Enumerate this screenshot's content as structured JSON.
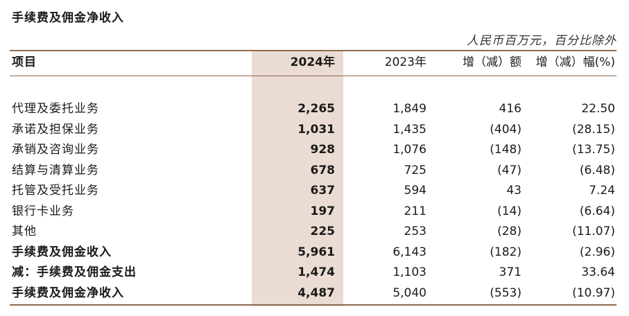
{
  "title": "手续费及佣金净收入",
  "unit_note": "人民币百万元，百分比除外",
  "headers": {
    "item": "项目",
    "y2024": "2024年",
    "y2023": "2023年",
    "change": "增（减）额",
    "change_pct": "增（减）幅(%)"
  },
  "rows": [
    {
      "label": "代理及委托业务",
      "y2024": "2,265",
      "y2023": "1,849",
      "change": "416",
      "change_pct": "22.50"
    },
    {
      "label": "承诺及担保业务",
      "y2024": "1,031",
      "y2023": "1,435",
      "change": "(404)",
      "change_pct": "(28.15)"
    },
    {
      "label": "承销及咨询业务",
      "y2024": "928",
      "y2023": "1,076",
      "change": "(148)",
      "change_pct": "(13.75)"
    },
    {
      "label": "结算与清算业务",
      "y2024": "678",
      "y2023": "725",
      "change": "(47)",
      "change_pct": "(6.48)"
    },
    {
      "label": "托管及受托业务",
      "y2024": "637",
      "y2023": "594",
      "change": "43",
      "change_pct": "7.24"
    },
    {
      "label": "银行卡业务",
      "y2024": "197",
      "y2023": "211",
      "change": "(14)",
      "change_pct": "(6.64)"
    },
    {
      "label": "其他",
      "y2024": "225",
      "y2023": "253",
      "change": "(28)",
      "change_pct": "(11.07)"
    },
    {
      "label": "手续费及佣金收入",
      "y2024": "5,961",
      "y2023": "6,143",
      "change": "(182)",
      "change_pct": "(2.96)"
    },
    {
      "label": "减：手续费及佣金支出",
      "y2024": "1,474",
      "y2023": "1,103",
      "change": "371",
      "change_pct": "33.64"
    },
    {
      "label": "手续费及佣金净收入",
      "y2024": "4,487",
      "y2023": "5,040",
      "change": "(553)",
      "change_pct": "(10.97)"
    }
  ]
}
